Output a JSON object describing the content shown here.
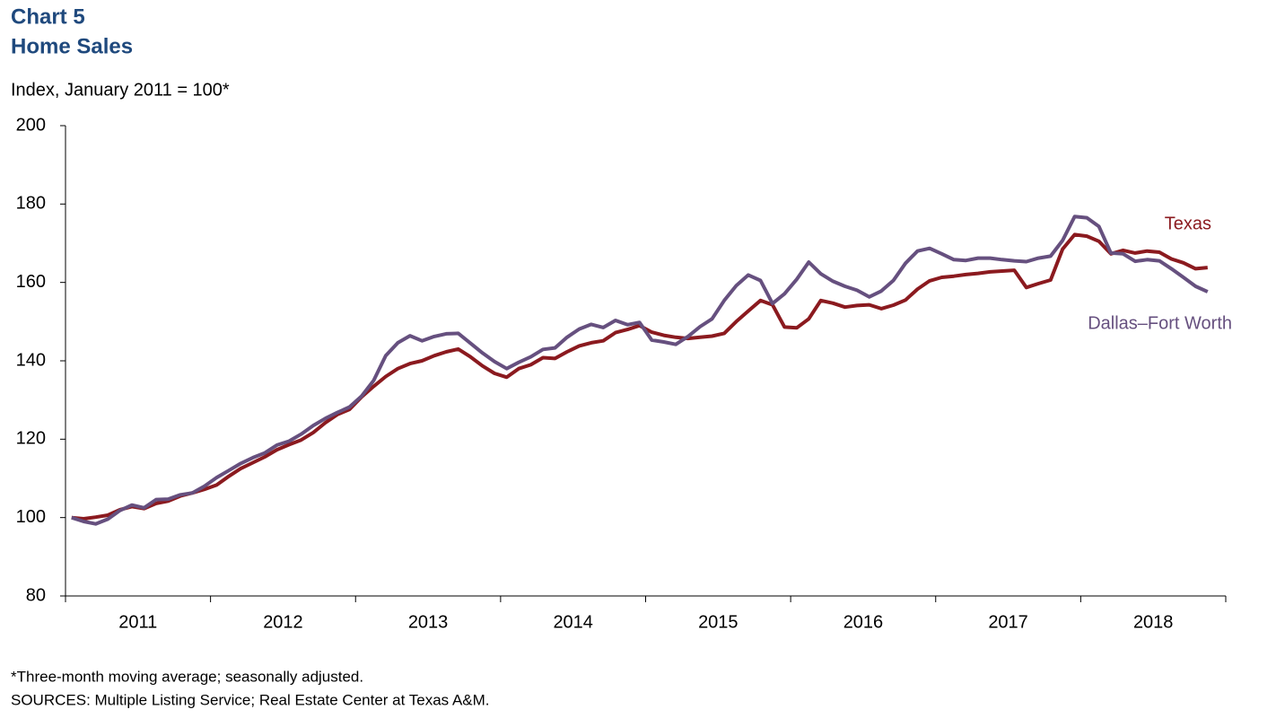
{
  "chart_data": {
    "type": "line",
    "chart_label": "Chart 5",
    "title": "Home Sales",
    "ylabel": "Index, January 2011 = 100*",
    "notes": [
      "*Three-month moving average; seasonally adjusted.",
      "SOURCES: Multiple Listing Service; Real Estate Center at Texas A&M."
    ],
    "categories": [
      "2011",
      "2012",
      "2013",
      "2014",
      "2015",
      "2016",
      "2017",
      "2018"
    ],
    "xlim": [
      2011,
      2019
    ],
    "xticks": [
      2011,
      2012,
      2013,
      2014,
      2015,
      2016,
      2017,
      2018,
      2019
    ],
    "ylim": [
      80,
      200
    ],
    "yticks": [
      80,
      100,
      120,
      140,
      160,
      180,
      200
    ],
    "x": [
      2011.042,
      2011.125,
      2011.208,
      2011.292,
      2011.375,
      2011.458,
      2011.542,
      2011.625,
      2011.708,
      2011.792,
      2011.875,
      2011.958,
      2012.042,
      2012.125,
      2012.208,
      2012.292,
      2012.375,
      2012.458,
      2012.542,
      2012.625,
      2012.708,
      2012.792,
      2012.875,
      2012.958,
      2013.042,
      2013.125,
      2013.208,
      2013.292,
      2013.375,
      2013.458,
      2013.542,
      2013.625,
      2013.708,
      2013.792,
      2013.875,
      2013.958,
      2014.042,
      2014.125,
      2014.208,
      2014.292,
      2014.375,
      2014.458,
      2014.542,
      2014.625,
      2014.708,
      2014.792,
      2014.875,
      2014.958,
      2015.042,
      2015.125,
      2015.208,
      2015.292,
      2015.375,
      2015.458,
      2015.542,
      2015.625,
      2015.708,
      2015.792,
      2015.875,
      2015.958,
      2016.042,
      2016.125,
      2016.208,
      2016.292,
      2016.375,
      2016.458,
      2016.542,
      2016.625,
      2016.708,
      2016.792,
      2016.875,
      2016.958,
      2017.042,
      2017.125,
      2017.208,
      2017.292,
      2017.375,
      2017.458,
      2017.542,
      2017.625,
      2017.708,
      2017.792,
      2017.875,
      2017.958,
      2018.042,
      2018.125,
      2018.208,
      2018.292,
      2018.375,
      2018.458,
      2018.542,
      2018.625,
      2018.708,
      2018.792,
      2018.875
    ],
    "series": [
      {
        "name": "Texas",
        "color": "#8b1a1f",
        "values": [
          100,
          99.7,
          100.1,
          100.6,
          102,
          102.8,
          102.3,
          103.6,
          104.2,
          105.5,
          106.3,
          107.2,
          108.3,
          110.5,
          112.5,
          114,
          115.5,
          117.3,
          118.6,
          119.8,
          121.7,
          124.2,
          126.3,
          127.6,
          130.8,
          133.5,
          136,
          138,
          139.3,
          140,
          141.3,
          142.3,
          143,
          141,
          138.7,
          136.8,
          135.8,
          138,
          139,
          140.8,
          140.6,
          142.3,
          143.8,
          144.6,
          145.1,
          147.2,
          148,
          149,
          147.3,
          146.5,
          146,
          145.7,
          146,
          146.3,
          147,
          150,
          152.7,
          155.4,
          154.3,
          148.6,
          148.4,
          150.7,
          155.4,
          154.7,
          153.7,
          154.1,
          154.3,
          153.3,
          154.2,
          155.5,
          158.3,
          160.4,
          161.3,
          161.6,
          162,
          162.3,
          162.7,
          162.9,
          163.1,
          158.7,
          159.7,
          160.6,
          168.5,
          172.2,
          171.8,
          170.5,
          167.3,
          168.2,
          167.5,
          168,
          167.7,
          166,
          165,
          163.5,
          163.8
        ]
      },
      {
        "name": "Dallas–Fort Worth",
        "color": "#66507f",
        "values": [
          100,
          99,
          98.4,
          99.6,
          101.8,
          103.2,
          102.5,
          104.6,
          104.7,
          105.8,
          106.3,
          108,
          110.2,
          112,
          113.8,
          115.3,
          116.5,
          118.5,
          119.5,
          121.3,
          123.5,
          125.3,
          126.8,
          128.2,
          131,
          135,
          141.3,
          144.6,
          146.4,
          145.1,
          146.2,
          146.9,
          147,
          144.5,
          142,
          139.8,
          138,
          139.6,
          141,
          142.9,
          143.3,
          146,
          148.1,
          149.3,
          148.5,
          150.3,
          149.2,
          149.8,
          145.3,
          144.8,
          144.2,
          146.2,
          148.7,
          150.7,
          155.4,
          159.2,
          161.9,
          160.5,
          154.6,
          157.1,
          160.8,
          165.2,
          162.2,
          160.3,
          159,
          158,
          156.3,
          157.8,
          160.5,
          164.9,
          168,
          168.7,
          167.3,
          165.8,
          165.6,
          166.2,
          166.2,
          165.8,
          165.5,
          165.3,
          166.2,
          166.7,
          170.7,
          176.8,
          176.5,
          174.3,
          167.5,
          167.3,
          165.4,
          165.8,
          165.5,
          163.5,
          161.3,
          159,
          157.6
        ]
      }
    ]
  }
}
